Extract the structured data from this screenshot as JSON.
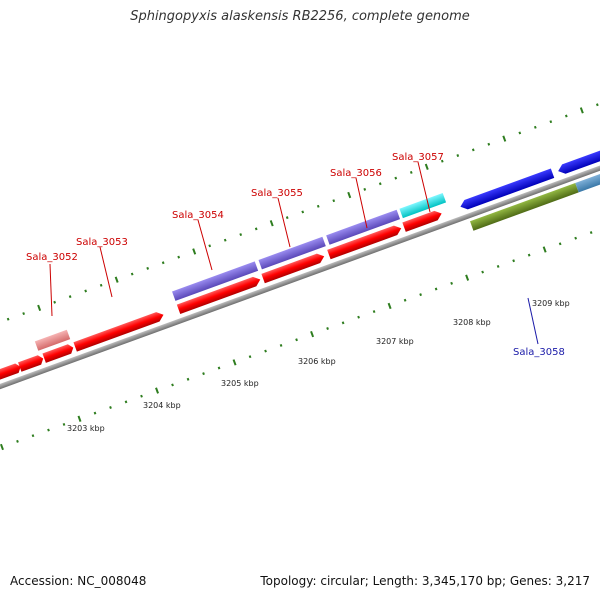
{
  "title": "Sphingopyxis alaskensis RB2256, complete genome",
  "footer": {
    "accession": "Accession: NC_008048",
    "summary": "Topology: circular; Length: 3,345,170 bp; Genes: 3,217"
  },
  "colors": {
    "backbone": "#8c8c8c",
    "tick": "#2e7d1f",
    "label_red": "#cc0000",
    "label_blue": "#1a1aa8"
  },
  "scale": {
    "unit": "kbp",
    "labels": [
      {
        "text": "3203 kbp",
        "kbp": 3203
      },
      {
        "text": "3204 kbp",
        "kbp": 3204
      },
      {
        "text": "3205 kbp",
        "kbp": 3205
      },
      {
        "text": "3206 kbp",
        "kbp": 3206
      },
      {
        "text": "3207 kbp",
        "kbp": 3207
      },
      {
        "text": "3208 kbp",
        "kbp": 3208
      },
      {
        "text": "3209 kbp",
        "kbp": 3209
      }
    ]
  },
  "genes": [
    {
      "label": "Sala_3052",
      "color": "#e58a8a"
    },
    {
      "label": "Sala_3053",
      "color": "#ff0000"
    },
    {
      "label": "Sala_3054",
      "color": "#7b68d8"
    },
    {
      "label": "Sala_3055",
      "color": "#7b68d8"
    },
    {
      "label": "Sala_3056",
      "color": "#7b68d8"
    },
    {
      "label": "Sala_3057",
      "color": "#00e5e5"
    },
    {
      "label": "Sala_3058",
      "color": "#6b8e23"
    }
  ]
}
